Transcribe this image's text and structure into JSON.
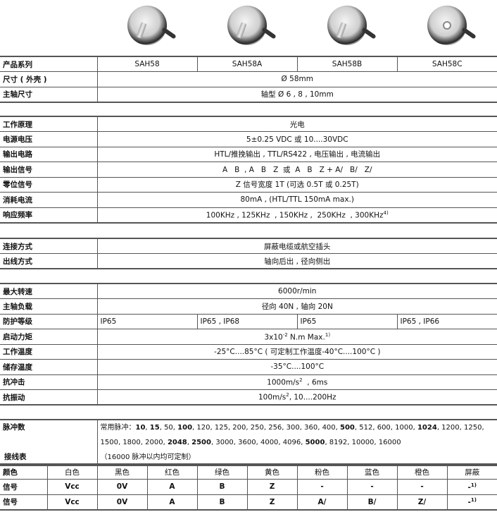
{
  "products": [
    {
      "name": "SAH58",
      "image": "encoder-shaft"
    },
    {
      "name": "SAH58A",
      "image": "encoder-shaft"
    },
    {
      "name": "SAH58B",
      "image": "encoder-shaft"
    },
    {
      "name": "SAH58C",
      "image": "encoder-hollow"
    }
  ],
  "g1": {
    "series_label": "产品系列",
    "size_label": "尺寸 ( 外壳 )",
    "size": "Ø 58mm",
    "shaft_label": "主轴尺寸",
    "shaft": "轴型 Ø 6 , 8 , 10mm"
  },
  "g2": [
    {
      "label": "工作原理",
      "value": "光电"
    },
    {
      "label": "电源电压",
      "value": "5±0.25 VDC  或  10....30VDC"
    },
    {
      "label": "输出电路",
      "value": "HTL/推挽输出 , TTL/RS422 , 电压输出 , 电流输出"
    },
    {
      "label": "输出信号",
      "value": "A   B  , A   B   Z  或  A   B   Z + A/   B/   Z/"
    },
    {
      "label": "零位信号",
      "value": "Z 信号宽度 1T (可选 0.5T 或 0.25T)"
    },
    {
      "label": "消耗电流",
      "value": "80mA , (HTL/TTL 150mA max.)"
    },
    {
      "label": "响应频率",
      "value": "100KHz , 125KHz  , 150KHz ,  250KHz  , 300KHz",
      "note": "4)"
    }
  ],
  "g3": [
    {
      "label": "连接方式",
      "value": "屏蔽电缆或航空插头"
    },
    {
      "label": "出线方式",
      "value": "轴向后出 , 径向侧出"
    }
  ],
  "g4": {
    "speed_label": "最大转速",
    "speed": "6000r/min",
    "load_label": "主轴负载",
    "load": "径向 40N , 轴向 20N",
    "ip_label": "防护等级",
    "ip": [
      "IP65",
      "IP65 , IP68",
      "IP65",
      "IP65 , IP66"
    ],
    "torque_label": "启动力矩",
    "torque_a": "3x10",
    "torque_exp": "-2",
    "torque_b": " N.m Max.",
    "torque_note": "1)",
    "temp_label": "工作温度",
    "temp": "-25°C....85°C ( 可定制工作温度-40°C....100°C )",
    "store_label": "储存温度",
    "store": "-35°C....100°C",
    "shock_label": "抗冲击",
    "shock_a": "1000m/s",
    "shock_exp": "2",
    "shock_b": "  , 6ms",
    "vib_label": "抗振动",
    "vib_a": "100m/s",
    "vib_exp": "2",
    "vib_b": ", 10....200Hz"
  },
  "pulse": {
    "label": "脉冲数",
    "prefix": "常用脉冲：",
    "items": [
      {
        "v": "10",
        "b": true
      },
      {
        "v": "15",
        "b": true
      },
      {
        "v": "50"
      },
      {
        "v": "100",
        "b": true
      },
      {
        "v": "120"
      },
      {
        "v": "125"
      },
      {
        "v": "200"
      },
      {
        "v": "250"
      },
      {
        "v": "256"
      },
      {
        "v": "300"
      },
      {
        "v": "360"
      },
      {
        "v": "400"
      },
      {
        "v": "500",
        "b": true
      },
      {
        "v": "512"
      },
      {
        "v": "600"
      },
      {
        "v": "1000"
      },
      {
        "v": "1024",
        "b": true
      },
      {
        "v": "1200"
      },
      {
        "v": "1250"
      },
      {
        "v": "1500"
      },
      {
        "v": "1800"
      },
      {
        "v": "2000"
      },
      {
        "v": "2048",
        "b": true
      },
      {
        "v": "2500",
        "b": true
      },
      {
        "v": "3000"
      },
      {
        "v": "3600"
      },
      {
        "v": "4000"
      },
      {
        "v": "4096"
      },
      {
        "v": "5000",
        "b": true
      },
      {
        "v": "8192"
      },
      {
        "v": "10000"
      },
      {
        "v": "16000"
      }
    ],
    "suffix": "（16000 脉冲以内均可定制）"
  },
  "wiring": {
    "title": "接线表",
    "color_label": "颜色",
    "colors": [
      "白色",
      "黑色",
      "红色",
      "绿色",
      "黄色",
      "粉色",
      "蓝色",
      "橙色",
      "屏蔽"
    ],
    "rows": [
      {
        "label": "信号",
        "cells": [
          "Vcc",
          "0V",
          "A",
          "B",
          "Z",
          "-",
          "-",
          "-",
          "-"
        ]
      },
      {
        "label": "信号",
        "cells": [
          "Vcc",
          "0V",
          "A",
          "B",
          "Z",
          "A/",
          "B/",
          "Z/",
          "-"
        ]
      }
    ],
    "shield_note": "1)"
  }
}
